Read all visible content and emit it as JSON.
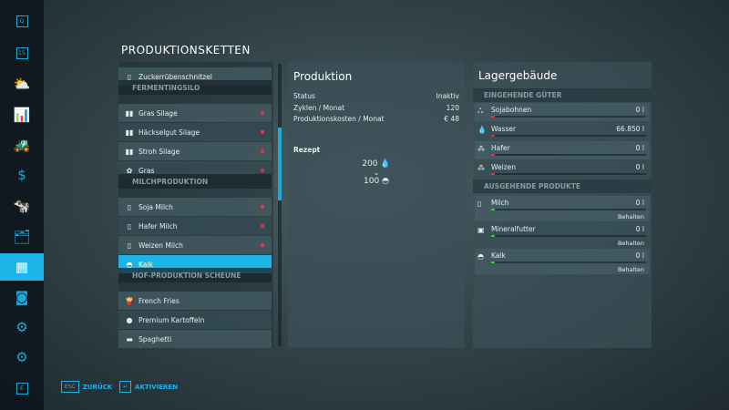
{
  "sidebar": {
    "items": [
      {
        "icon": "search-icon",
        "glyph": "Q",
        "box": true
      },
      {
        "icon": "calendar-icon",
        "glyph": "15",
        "box": true
      },
      {
        "icon": "weather-icon",
        "glyph": "⛅"
      },
      {
        "icon": "statistics-icon",
        "glyph": "📊"
      },
      {
        "icon": "tractor-icon",
        "glyph": "🚜"
      },
      {
        "icon": "finances-icon",
        "glyph": "$"
      },
      {
        "icon": "animals-icon",
        "glyph": "🐄"
      },
      {
        "icon": "contracts-icon",
        "glyph": "🗂"
      },
      {
        "icon": "production-icon",
        "glyph": "▦",
        "selected": true
      },
      {
        "icon": "tutorial-icon",
        "glyph": "◙"
      },
      {
        "icon": "garage-icon",
        "glyph": "⚙"
      },
      {
        "icon": "settings-icon",
        "glyph": "⚙"
      },
      {
        "icon": "e-key-icon",
        "glyph": "E",
        "box": true
      }
    ]
  },
  "title": "PRODUKTIONSKETTEN",
  "list": [
    {
      "type": "row",
      "label": "Zuckerrübenschnitzel",
      "icon": "beet-pulp-icon",
      "glyph": "▯",
      "dot": false
    },
    {
      "type": "header",
      "label": "FERMENTINGSILO"
    },
    {
      "type": "row",
      "label": "Gras Silage",
      "icon": "silage-icon",
      "glyph": "▮▮",
      "dot": true
    },
    {
      "type": "row",
      "label": "Häckselgut Silage",
      "icon": "silage-icon",
      "glyph": "▮▮",
      "dot": true
    },
    {
      "type": "row",
      "label": "Stroh Silage",
      "icon": "silage-icon",
      "glyph": "▮▮",
      "dot": true
    },
    {
      "type": "row",
      "label": "Gras",
      "icon": "grass-icon",
      "glyph": "✿",
      "dot": true
    },
    {
      "type": "header",
      "label": "MILCHPRODUKTION"
    },
    {
      "type": "row",
      "label": "Soja Milch",
      "icon": "milk-bottle-icon",
      "glyph": "▯",
      "dot": true
    },
    {
      "type": "row",
      "label": "Hafer Milch",
      "icon": "milk-bottle-icon",
      "glyph": "▯",
      "dot": true
    },
    {
      "type": "row",
      "label": "Weizen Milch",
      "icon": "milk-bottle-icon",
      "glyph": "▯",
      "dot": true
    },
    {
      "type": "row",
      "label": "Kalk",
      "icon": "lime-icon",
      "glyph": "◓",
      "dot": false,
      "selected": true
    },
    {
      "type": "header",
      "label": "HOF-PRODUKTION SCHEUNE"
    },
    {
      "type": "row",
      "label": "French Fries",
      "icon": "fries-icon",
      "glyph": "🍟",
      "dot": false
    },
    {
      "type": "row",
      "label": "Premium Kartoffeln",
      "icon": "potato-icon",
      "glyph": "●",
      "dot": false
    },
    {
      "type": "row",
      "label": "Spaghetti",
      "icon": "spaghetti-icon",
      "glyph": "▬",
      "dot": false
    }
  ],
  "production": {
    "title": "Produktion",
    "rows": [
      {
        "label": "Status",
        "value": "Inaktiv"
      },
      {
        "label": "Zyklen / Monat",
        "value": "120"
      },
      {
        "label": "Produktionskosten / Monat",
        "value": "€ 48"
      }
    ],
    "recipe_label": "Rezept",
    "input_amount": "200",
    "input_icon": "water-drop-icon",
    "output_amount": "100",
    "output_icon": "lime-icon"
  },
  "storage": {
    "title": "Lagergebäude",
    "incoming_label": "EINGEHENDE GÜTER",
    "outgoing_label": "AUSGEHENDE PRODUKTE",
    "incoming": [
      {
        "name": "Sojabohnen",
        "value": "0 l",
        "icon": "soybean-icon",
        "glyph": "ஃ"
      },
      {
        "name": "Wasser",
        "value": "66.850 l",
        "icon": "water-drop-icon",
        "glyph": "💧"
      },
      {
        "name": "Hafer",
        "value": "0 l",
        "icon": "oat-icon",
        "glyph": "⁂"
      },
      {
        "name": "Weizen",
        "value": "0 l",
        "icon": "wheat-icon",
        "glyph": "⁂"
      }
    ],
    "outgoing": [
      {
        "name": "Milch",
        "value": "0 l",
        "mode": "Behalten",
        "icon": "milk-bottle-icon",
        "glyph": "▯"
      },
      {
        "name": "Mineralfutter",
        "value": "0 l",
        "mode": "Behalten",
        "icon": "mineral-feed-icon",
        "glyph": "▣"
      },
      {
        "name": "Kalk",
        "value": "0 l",
        "mode": "Behalten",
        "icon": "lime-icon",
        "glyph": "◓"
      }
    ]
  },
  "footer": {
    "back_key": "ESC",
    "back_label": "ZURÜCK",
    "activate_key": "↵",
    "activate_label": "AKTIVIEREN"
  },
  "colors": {
    "accent": "#1eb4e6",
    "alert": "#e0323c",
    "ok": "#3fc24a"
  }
}
